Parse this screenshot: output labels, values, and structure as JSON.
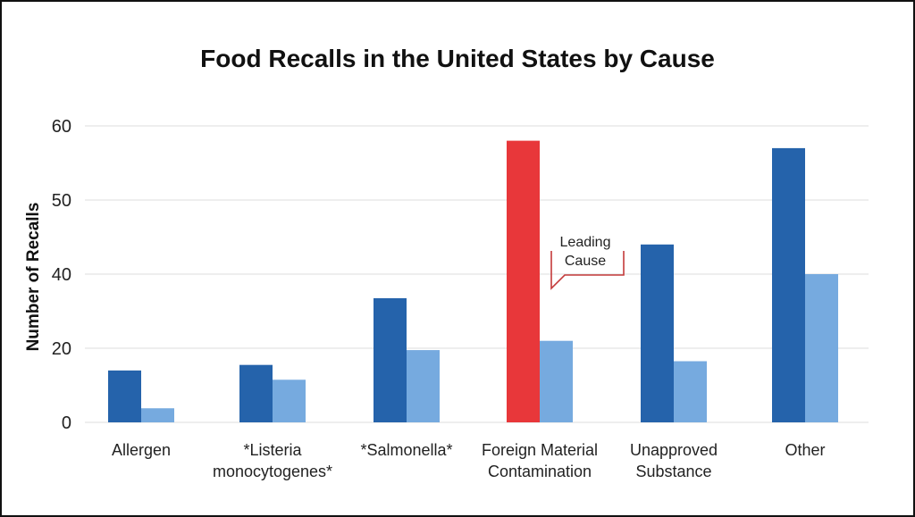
{
  "chart_data": {
    "type": "bar",
    "title": "Food Recalls in the United States by Cause",
    "ylabel": "Number of Recalls",
    "xlabel": "",
    "ylim": [
      0,
      60
    ],
    "yticks": [
      "0",
      "20",
      "40",
      "50",
      "60"
    ],
    "grid": true,
    "categories": [
      "Allergen",
      "*Listeria monocytogenes*",
      "*Salmonella*",
      "Foreign Material Contamination",
      "Unapproved Substance",
      "Other"
    ],
    "category_labels": [
      [
        "Allergen"
      ],
      [
        "*Listeria",
        "monocytogenes*"
      ],
      [
        "*Salmonella*"
      ],
      [
        "Foreign Material",
        "Contamination"
      ],
      [
        "Unapproved",
        "Substance"
      ],
      [
        "Other"
      ]
    ],
    "series": [
      {
        "values": [
          14,
          15.5,
          33.5,
          58,
          44,
          57
        ],
        "color": "#2563ab"
      },
      {
        "values": [
          3.8,
          11.5,
          19.5,
          22,
          16.5,
          40
        ],
        "color": "#76aadf"
      }
    ],
    "highlight": {
      "category_index": 3,
      "series_index": 0,
      "color": "#e8373a"
    },
    "annotation": {
      "text": "Leading\nCause",
      "category_index": 3,
      "border_color": "#c43a3a"
    }
  }
}
